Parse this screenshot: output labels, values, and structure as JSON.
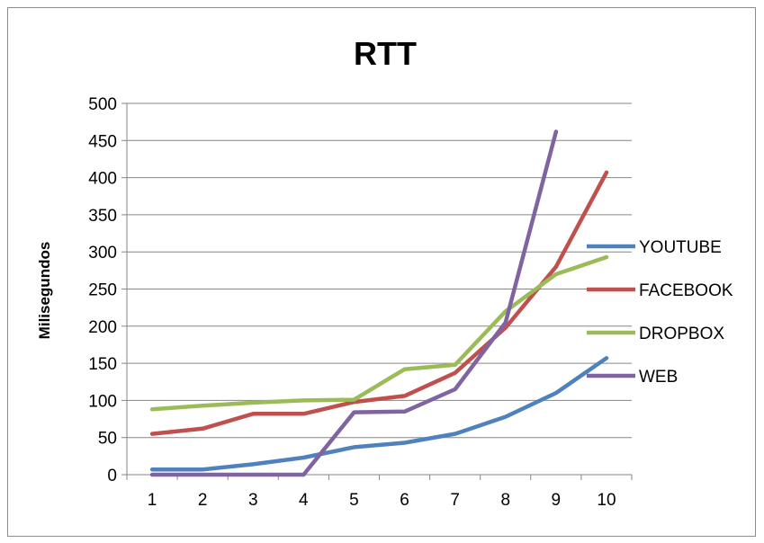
{
  "chart_data": {
    "type": "line",
    "title": "RTT",
    "xlabel": "",
    "ylabel": "Milisegundos",
    "x": [
      1,
      2,
      3,
      4,
      5,
      6,
      7,
      8,
      9,
      10
    ],
    "x_tick_labels": [
      "1",
      "2",
      "3",
      "4",
      "5",
      "6",
      "7",
      "8",
      "9",
      "10"
    ],
    "y_tick_labels": [
      "0",
      "50",
      "100",
      "150",
      "200",
      "250",
      "300",
      "350",
      "400",
      "450",
      "500"
    ],
    "ylim": [
      0,
      500
    ],
    "grid": true,
    "legend_position": "right",
    "series": [
      {
        "name": "YOUTUBE",
        "color": "#4f81bd",
        "values": [
          7,
          7,
          14,
          23,
          37,
          43,
          55,
          78,
          110,
          157
        ]
      },
      {
        "name": "FACEBOOK",
        "color": "#c0504d",
        "values": [
          55,
          62,
          82,
          82,
          98,
          106,
          137,
          198,
          280,
          407
        ]
      },
      {
        "name": "DROPBOX",
        "color": "#9bbb59",
        "values": [
          88,
          93,
          97,
          100,
          101,
          142,
          148,
          220,
          270,
          293
        ]
      },
      {
        "name": "WEB",
        "color": "#8064a2",
        "values": [
          0,
          0,
          0,
          0,
          84,
          85,
          115,
          205,
          462,
          null
        ]
      }
    ]
  }
}
